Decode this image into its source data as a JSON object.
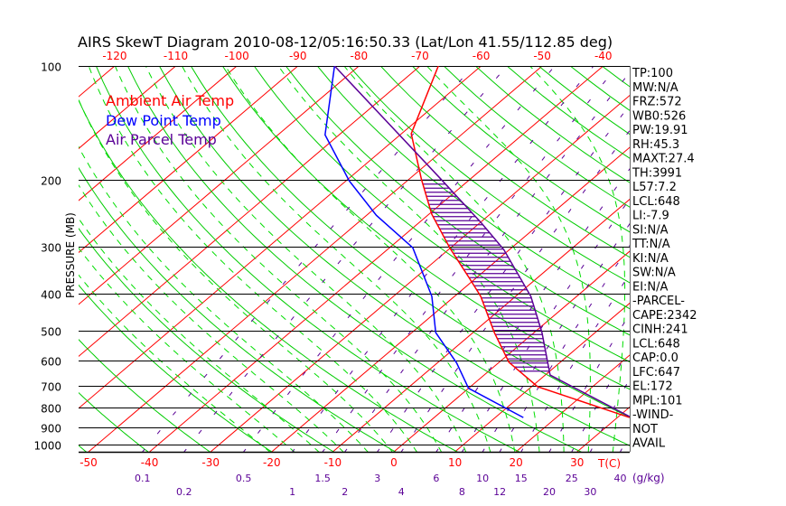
{
  "chart_data": {
    "type": "line",
    "title": "AIRS SkewT Diagram 2010-08-12/05:16:50.33 (Lat/Lon 41.55/112.85 deg)",
    "ylabel": "PRESSURE (MB)",
    "xlabel": "T(C)",
    "mixing_ratio_unit": "(g/kg)",
    "ylim": [
      1044,
      100
    ],
    "pressure_ticks": [
      "100",
      "200",
      "300",
      "400",
      "500",
      "600",
      "700",
      "800",
      "900",
      "1000"
    ],
    "pressure_tick_values": [
      100,
      200,
      300,
      400,
      500,
      600,
      700,
      800,
      900,
      1000
    ],
    "top_temp_ticks": [
      "-120",
      "-110",
      "-100",
      "-90",
      "-80",
      "-70",
      "-60",
      "-50",
      "-40"
    ],
    "top_temp_values": [
      -120,
      -110,
      -100,
      -90,
      -80,
      -70,
      -60,
      -50,
      -40
    ],
    "bottom_temp_ticks": [
      "-50",
      "-40",
      "-30",
      "-20",
      "-10",
      "0",
      "10",
      "20",
      "30"
    ],
    "bottom_temp_values": [
      -50,
      -40,
      -30,
      -20,
      -10,
      0,
      10,
      20,
      30
    ],
    "mixing_ratio_ticks": [
      "0.1",
      "0.2",
      "0.5",
      "1",
      "1.5",
      "2",
      "3",
      "4",
      "6",
      "8",
      "10",
      "12",
      "15",
      "20",
      "25",
      "30",
      "40"
    ],
    "mixing_ratio_values": [
      0.1,
      0.2,
      0.5,
      1,
      1.5,
      2,
      3,
      4,
      6,
      8,
      10,
      12,
      15,
      20,
      25,
      30,
      40
    ],
    "legend": [
      "Ambient Air Temp",
      "Dew Point Temp",
      "Air Parcel Temp"
    ],
    "legend_placement": "top-left",
    "series": [
      {
        "name": "Ambient Air Temp",
        "color": "#ff0000",
        "p": [
          100,
          151,
          199,
          246,
          303,
          364,
          406,
          506,
          606,
          703,
          848
        ],
        "t": [
          -67,
          -58.4,
          -48,
          -39.6,
          -30,
          -21,
          -15.7,
          -6.5,
          1.6,
          11,
          32
        ]
      },
      {
        "name": "Dew Point Temp",
        "color": "#0000ff",
        "p": [
          100,
          152,
          201,
          248,
          302,
          406,
          506,
          609,
          710,
          848
        ],
        "t": [
          -84,
          -72.3,
          -59.5,
          -48.4,
          -36.2,
          -23.7,
          -16.1,
          -6.8,
          0,
          14.6
        ]
      },
      {
        "name": "Air Parcel Temp",
        "color": "#5a0096",
        "p": [
          100,
          199,
          260,
          305,
          406,
          506,
          655,
          843
        ],
        "t": [
          -84,
          -44.8,
          -29.7,
          -21,
          -7.5,
          1.3,
          10.8,
          31.8
        ]
      }
    ],
    "cape_shading": {
      "p_top": 199,
      "p_bottom": 655
    }
  },
  "stats": [
    "TP:100",
    "MW:N/A",
    "FRZ:572",
    "WB0:526",
    "PW:19.91",
    "RH:45.3",
    "MAXT:27.4",
    "TH:3991",
    "L57:7.2",
    "LCL:648",
    "LI:-7.9",
    "SI:N/A",
    "TT:N/A",
    "KI:N/A",
    "SW:N/A",
    "EI:N/A",
    "-PARCEL-",
    "CAPE:2342",
    "CINH:241",
    "LCL:648",
    "CAP:0.0",
    "LFC:647",
    "EL:172",
    "MPL:101",
    "-WIND-",
    " NOT",
    " AVAIL"
  ],
  "colors": {
    "isotherm": "#ff0000",
    "dry_adiabat": "#00cc00",
    "moist_adiabat": "#00dd00",
    "mixing_ratio": "#5a0096",
    "isobar": "#000000"
  }
}
